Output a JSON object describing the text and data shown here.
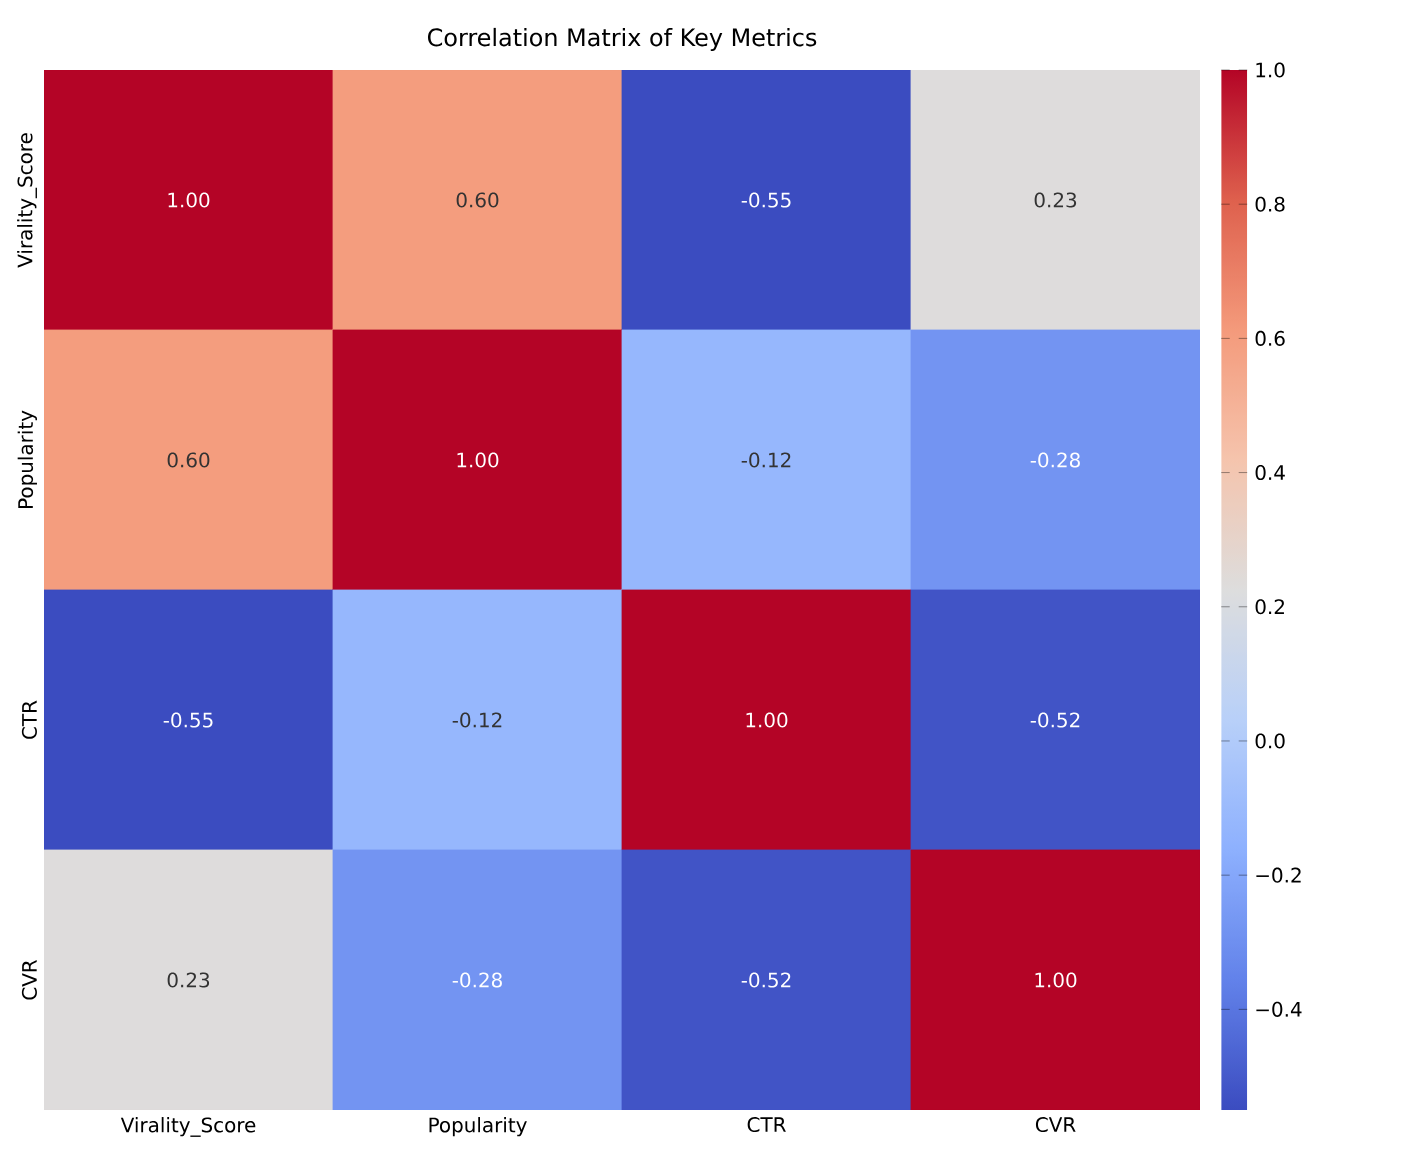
{
  "chart_data": {
    "type": "heatmap",
    "title": "Correlation Matrix of Key Metrics",
    "categories": [
      "Virality_Score",
      "Popularity",
      "CTR",
      "CVR"
    ],
    "y_categories": [
      "Virality_Score",
      "Popularity",
      "CTR",
      "CVR"
    ],
    "cells": [
      [
        1.0,
        0.6,
        -0.55,
        0.23
      ],
      [
        0.6,
        1.0,
        -0.12,
        -0.28
      ],
      [
        -0.55,
        -0.12,
        1.0,
        -0.52
      ],
      [
        0.23,
        -0.28,
        -0.52,
        1.0
      ]
    ],
    "cell_labels": [
      [
        "1.00",
        "0.60",
        "-0.55",
        "0.23"
      ],
      [
        "0.60",
        "1.00",
        "-0.12",
        "-0.28"
      ],
      [
        "-0.55",
        "-0.12",
        "1.00",
        "-0.52"
      ],
      [
        "0.23",
        "-0.28",
        "-0.52",
        "1.00"
      ]
    ],
    "clim": [
      -0.55,
      1.0
    ],
    "cticks": [
      {
        "value": -0.4,
        "label": "−0.4"
      },
      {
        "value": -0.2,
        "label": "−0.2"
      },
      {
        "value": 0,
        "label": "0.0"
      },
      {
        "value": 0.2,
        "label": "0.2"
      },
      {
        "value": 0.4,
        "label": "0.4"
      },
      {
        "value": 0.6,
        "label": "0.6"
      },
      {
        "value": 0.8,
        "label": "0.8"
      },
      {
        "value": 1,
        "label": "1.0"
      }
    ]
  }
}
